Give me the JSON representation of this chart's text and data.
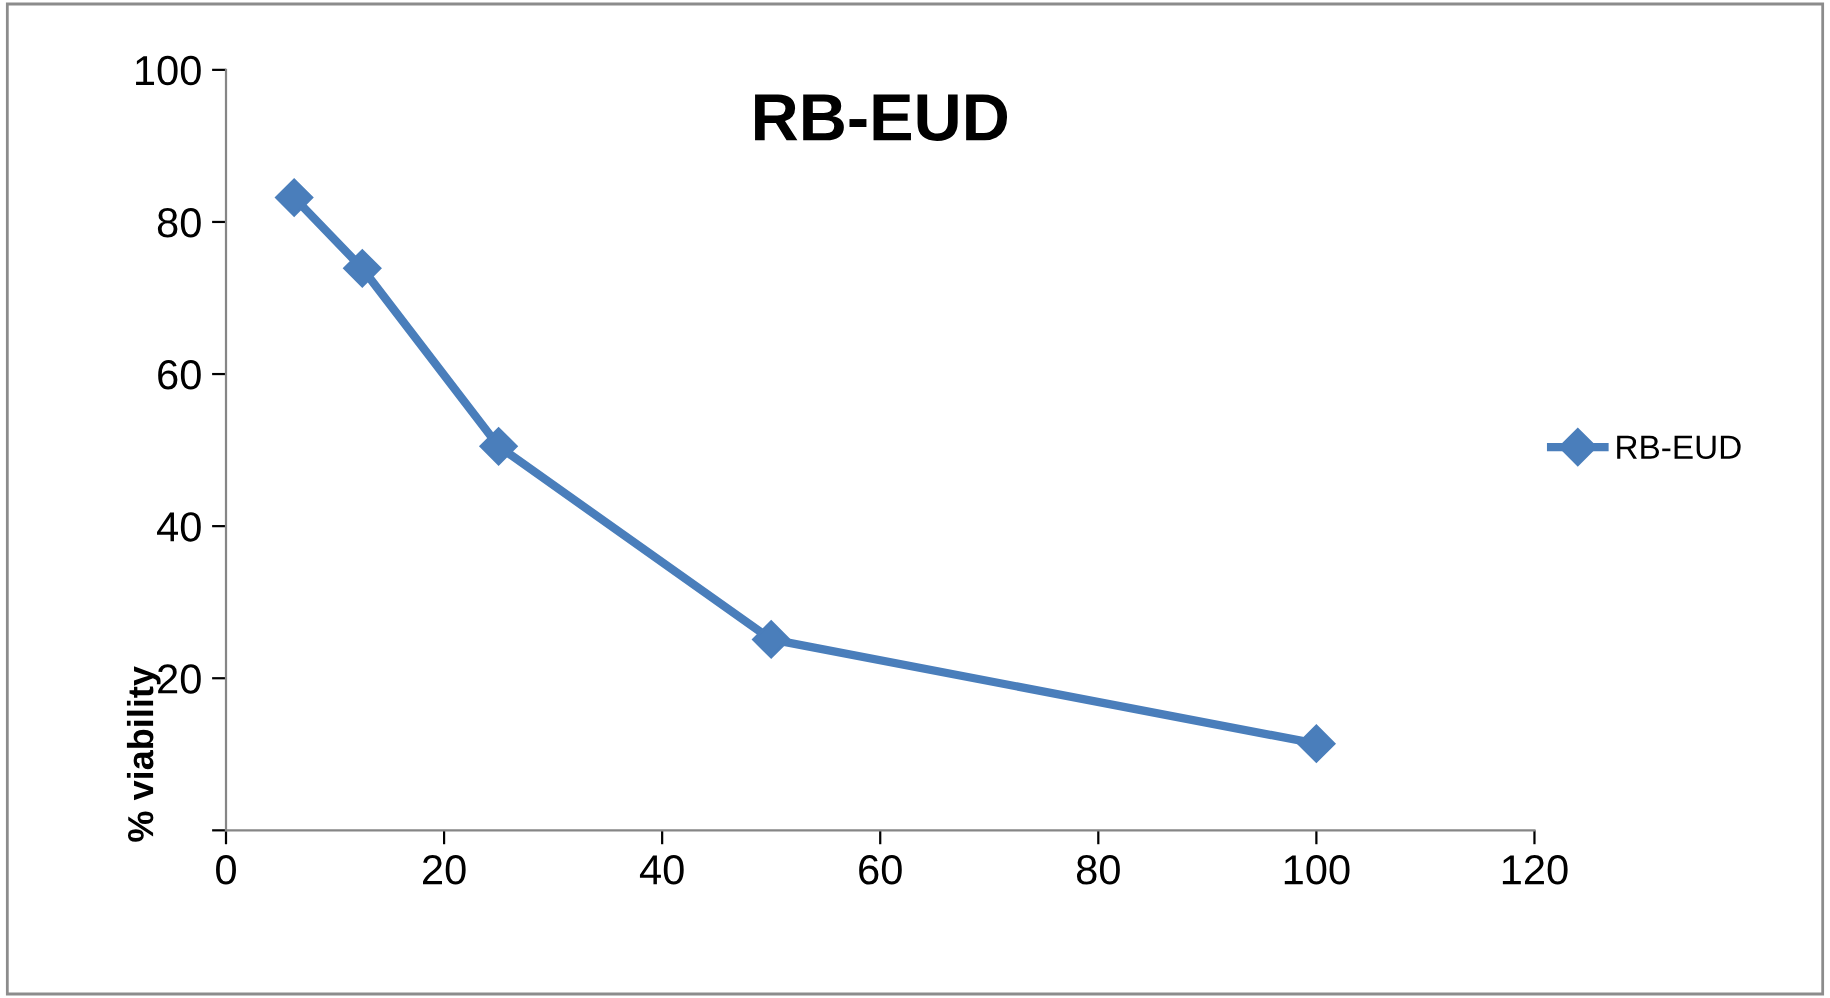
{
  "chart_data": {
    "type": "line",
    "title": "RB-EUD",
    "ylabel": "% viability",
    "x": [
      6.25,
      12.5,
      25,
      50,
      100
    ],
    "series": [
      {
        "name": "RB-EUD",
        "color": "#4a7ebb",
        "values": [
          83.2,
          73.9,
          50.5,
          25.1,
          11.4
        ]
      }
    ],
    "xlim": [
      0,
      120
    ],
    "xticks": [
      0,
      20,
      40,
      60,
      80,
      100,
      120
    ],
    "ylim": [
      0,
      100
    ],
    "yticks": [
      {
        "value": 0,
        "label": null
      },
      20,
      40,
      60,
      80,
      100
    ],
    "marker": "diamond",
    "line_style": "solid",
    "legend": "right",
    "grid": false
  }
}
